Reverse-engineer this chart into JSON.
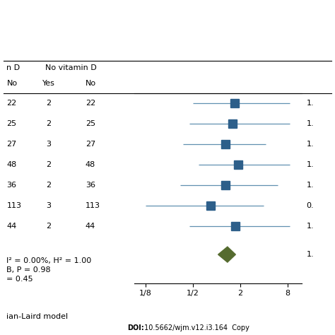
{
  "rows": [
    {
      "no_vitd": 22,
      "yes": 2,
      "no": 22,
      "effect": 1.7,
      "ci_low": 0.5,
      "ci_high": 8.5,
      "label": "1."
    },
    {
      "no_vitd": 25,
      "yes": 2,
      "no": 25,
      "effect": 1.6,
      "ci_low": 0.45,
      "ci_high": 8.5,
      "label": "1."
    },
    {
      "no_vitd": 27,
      "yes": 3,
      "no": 27,
      "effect": 1.3,
      "ci_low": 0.38,
      "ci_high": 4.2,
      "label": "1."
    },
    {
      "no_vitd": 48,
      "yes": 2,
      "no": 48,
      "effect": 1.9,
      "ci_low": 0.6,
      "ci_high": 8.5,
      "label": "1."
    },
    {
      "no_vitd": 36,
      "yes": 2,
      "no": 36,
      "effect": 1.3,
      "ci_low": 0.35,
      "ci_high": 6.0,
      "label": "1."
    },
    {
      "no_vitd": 113,
      "yes": 3,
      "no": 113,
      "effect": 0.85,
      "ci_low": 0.125,
      "ci_high": 4.0,
      "label": "0."
    },
    {
      "no_vitd": 44,
      "yes": 2,
      "no": 44,
      "effect": 1.75,
      "ci_low": 0.45,
      "ci_high": 8.5,
      "label": "1."
    }
  ],
  "diamond": {
    "effect": 1.38,
    "ci_low": 1.05,
    "ci_high": 1.75
  },
  "diamond_label": "1.",
  "square_color": "#2d5f8a",
  "diamond_color": "#556b2f",
  "line_color": "#6090b0",
  "bg_color": "#ffffff",
  "stats_line1": "I² = 0.00%, H² = 1.00",
  "stats_line2": "B, P = 0.98",
  "stats_line3": "= 0.45",
  "footer": "ian-Laird model",
  "doi_bold": "DOI:",
  "doi_rest": " 10.5662/wjm.v12.i3.164  Copy",
  "x_ticks": [
    "1/8",
    "1/2",
    "2",
    "8"
  ],
  "x_tick_vals": [
    0.125,
    0.5,
    2.0,
    8.0
  ]
}
